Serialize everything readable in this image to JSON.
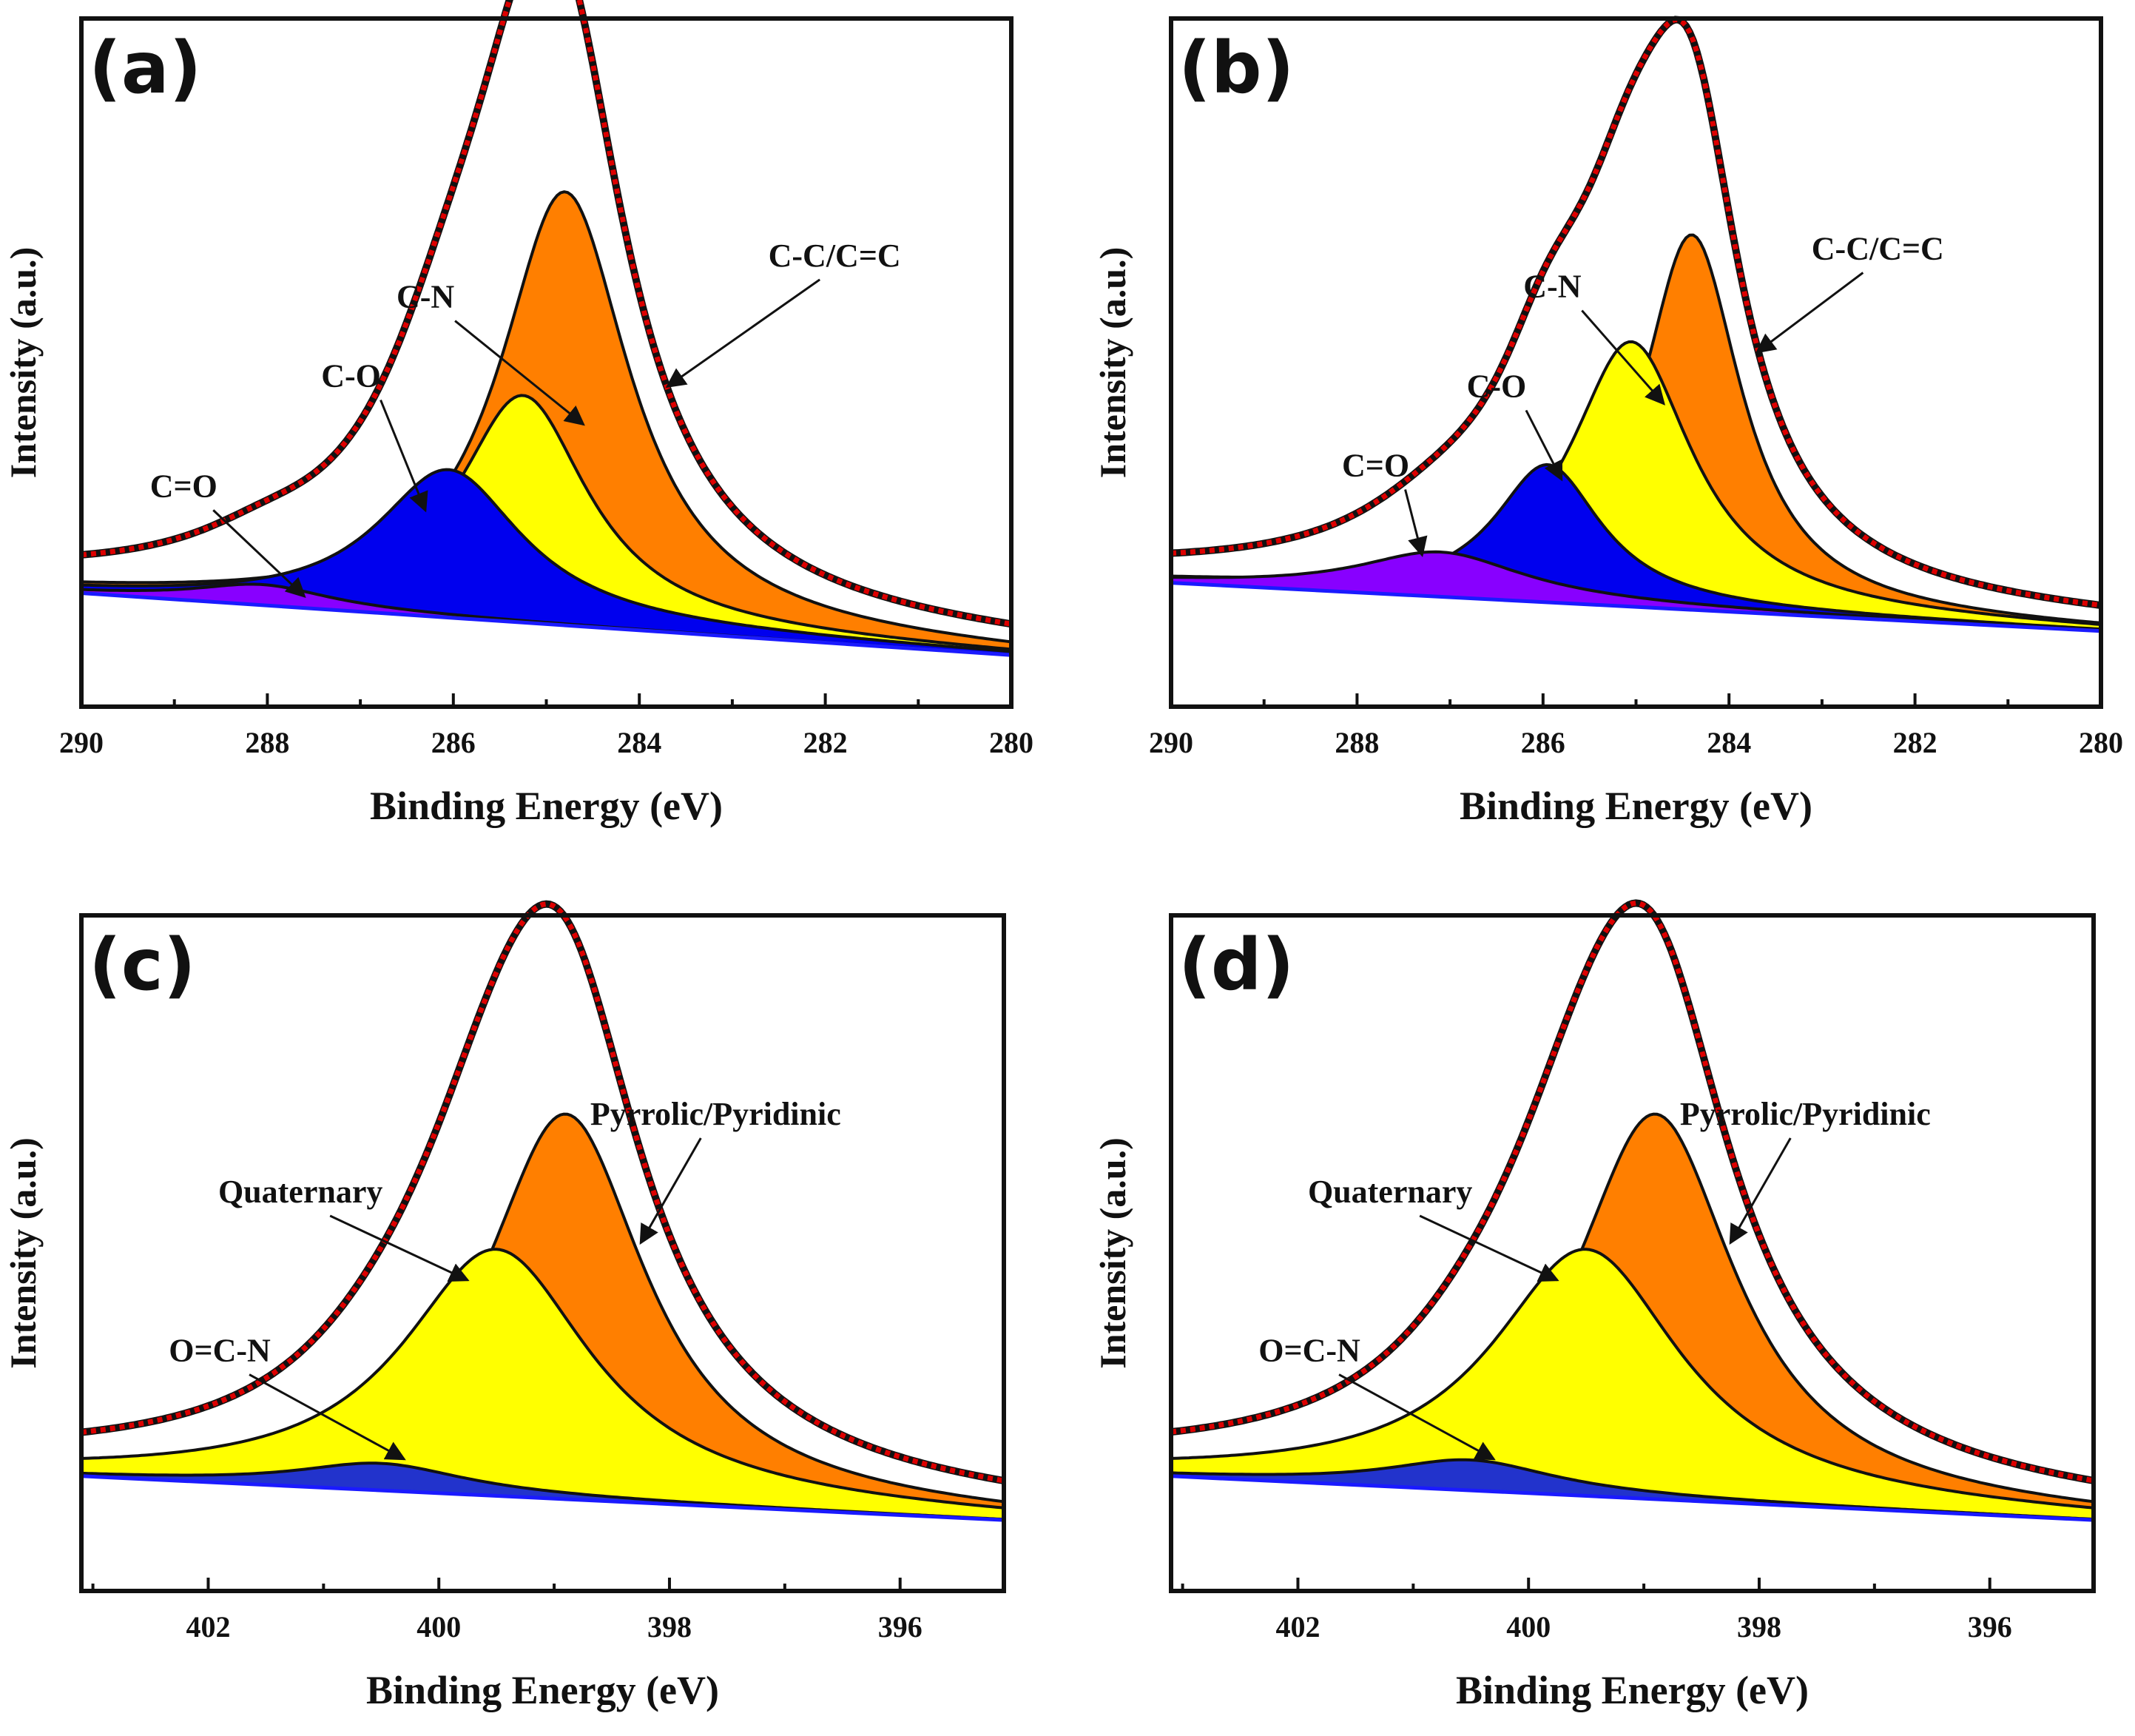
{
  "chart_data": [
    {
      "id": "a",
      "type": "area",
      "panel_label": "(a)",
      "xlabel": "Binding Energy (eV)",
      "ylabel": "Intensity (a.u.)",
      "xlim": [
        290,
        280
      ],
      "ylim": [
        0,
        1
      ],
      "xticks": [
        290,
        288,
        286,
        284,
        282,
        280
      ],
      "baseline": [
        0.165,
        0.075
      ],
      "series": [
        {
          "name": "C=O",
          "center": 288.05,
          "height": 0.03,
          "width": 0.9,
          "color": "#8800ff",
          "label_xy": [
            288.9,
            0.305
          ],
          "arrow_to": [
            287.6,
            0.16
          ]
        },
        {
          "name": "C-O",
          "center": 286.05,
          "height": 0.215,
          "width": 0.95,
          "color": "#0000ee",
          "label_xy": [
            287.1,
            0.465
          ],
          "arrow_to": [
            286.3,
            0.285
          ]
        },
        {
          "name": "C-N",
          "center": 285.25,
          "height": 0.33,
          "width": 0.85,
          "color": "#ffff00",
          "label_xy": [
            286.3,
            0.58
          ],
          "arrow_to": [
            284.6,
            0.41
          ]
        },
        {
          "name": "C-C/C=C",
          "center": 284.8,
          "height": 0.63,
          "width": 0.85,
          "color": "#ff7f00",
          "label_xy": [
            281.9,
            0.64
          ],
          "arrow_to": [
            283.7,
            0.465
          ]
        }
      ],
      "envelope": {
        "name": "Fitted envelope",
        "color": "#dd0000"
      }
    },
    {
      "id": "b",
      "type": "area",
      "panel_label": "(b)",
      "xlabel": "Binding Energy (eV)",
      "ylabel": "Intensity (a.u.)",
      "xlim": [
        290,
        280
      ],
      "ylim": [
        0,
        1
      ],
      "xticks": [
        290,
        288,
        286,
        284,
        282,
        280
      ],
      "baseline": [
        0.18,
        0.11
      ],
      "series": [
        {
          "name": "C=O",
          "center": 287.1,
          "height": 0.065,
          "width": 1.1,
          "color": "#8800ff",
          "label_xy": [
            287.8,
            0.335
          ],
          "arrow_to": [
            287.3,
            0.22
          ]
        },
        {
          "name": "C-O",
          "center": 285.95,
          "height": 0.2,
          "width": 0.7,
          "color": "#0000ee",
          "label_xy": [
            286.5,
            0.45
          ],
          "arrow_to": [
            285.8,
            0.33
          ]
        },
        {
          "name": "C-N",
          "center": 285.05,
          "height": 0.385,
          "width": 0.8,
          "color": "#ffff00",
          "label_xy": [
            285.9,
            0.595
          ],
          "arrow_to": [
            284.7,
            0.44
          ]
        },
        {
          "name": "C-C/C=C",
          "center": 284.4,
          "height": 0.545,
          "width": 0.65,
          "color": "#ff7f00",
          "label_xy": [
            282.4,
            0.65
          ],
          "arrow_to": [
            283.7,
            0.515
          ]
        }
      ],
      "envelope": {
        "name": "Fitted envelope",
        "color": "#dd0000"
      }
    },
    {
      "id": "c",
      "type": "area",
      "panel_label": "(c)",
      "xlabel": "Binding Energy (eV)",
      "ylabel": "Intensity (a.u.)",
      "xlim": [
        403.1,
        395.1
      ],
      "ylim": [
        0,
        1
      ],
      "xticks": [
        402,
        400,
        398,
        396
      ],
      "baseline": [
        0.17,
        0.105
      ],
      "series": [
        {
          "name": "O=C-N",
          "center": 400.5,
          "height": 0.04,
          "width": 0.9,
          "color": "#2233cc",
          "label_xy": [
            401.9,
            0.34
          ],
          "arrow_to": [
            400.3,
            0.195
          ]
        },
        {
          "name": "Quaternary",
          "center": 399.5,
          "height": 0.365,
          "width": 1.0,
          "color": "#ffff00",
          "label_xy": [
            401.2,
            0.575
          ],
          "arrow_to": [
            399.75,
            0.46
          ]
        },
        {
          "name": "Pyrrolic/Pyridinic",
          "center": 398.9,
          "height": 0.57,
          "width": 0.85,
          "color": "#ff7f00",
          "label_xy": [
            397.6,
            0.69
          ],
          "arrow_to": [
            398.25,
            0.515
          ]
        }
      ],
      "envelope": {
        "name": "Fitted envelope",
        "color": "#dd0000"
      }
    },
    {
      "id": "d",
      "type": "area",
      "panel_label": "(d)",
      "xlabel": "Binding Energy (eV)",
      "ylabel": "Intensity (a.u.)",
      "xlim": [
        403.1,
        395.1
      ],
      "ylim": [
        0,
        1
      ],
      "xticks": [
        402,
        400,
        398,
        396
      ],
      "baseline": [
        0.17,
        0.105
      ],
      "series": [
        {
          "name": "O=C-N",
          "center": 400.5,
          "height": 0.045,
          "width": 0.9,
          "color": "#2233cc",
          "label_xy": [
            401.9,
            0.34
          ],
          "arrow_to": [
            400.3,
            0.195
          ]
        },
        {
          "name": "Quaternary",
          "center": 399.5,
          "height": 0.365,
          "width": 1.0,
          "color": "#ffff00",
          "label_xy": [
            401.2,
            0.575
          ],
          "arrow_to": [
            399.75,
            0.46
          ]
        },
        {
          "name": "Pyrrolic/Pyridinic",
          "center": 398.9,
          "height": 0.57,
          "width": 0.85,
          "color": "#ff7f00",
          "label_xy": [
            397.6,
            0.69
          ],
          "arrow_to": [
            398.25,
            0.515
          ]
        }
      ],
      "envelope": {
        "name": "Fitted envelope",
        "color": "#dd0000"
      }
    }
  ]
}
